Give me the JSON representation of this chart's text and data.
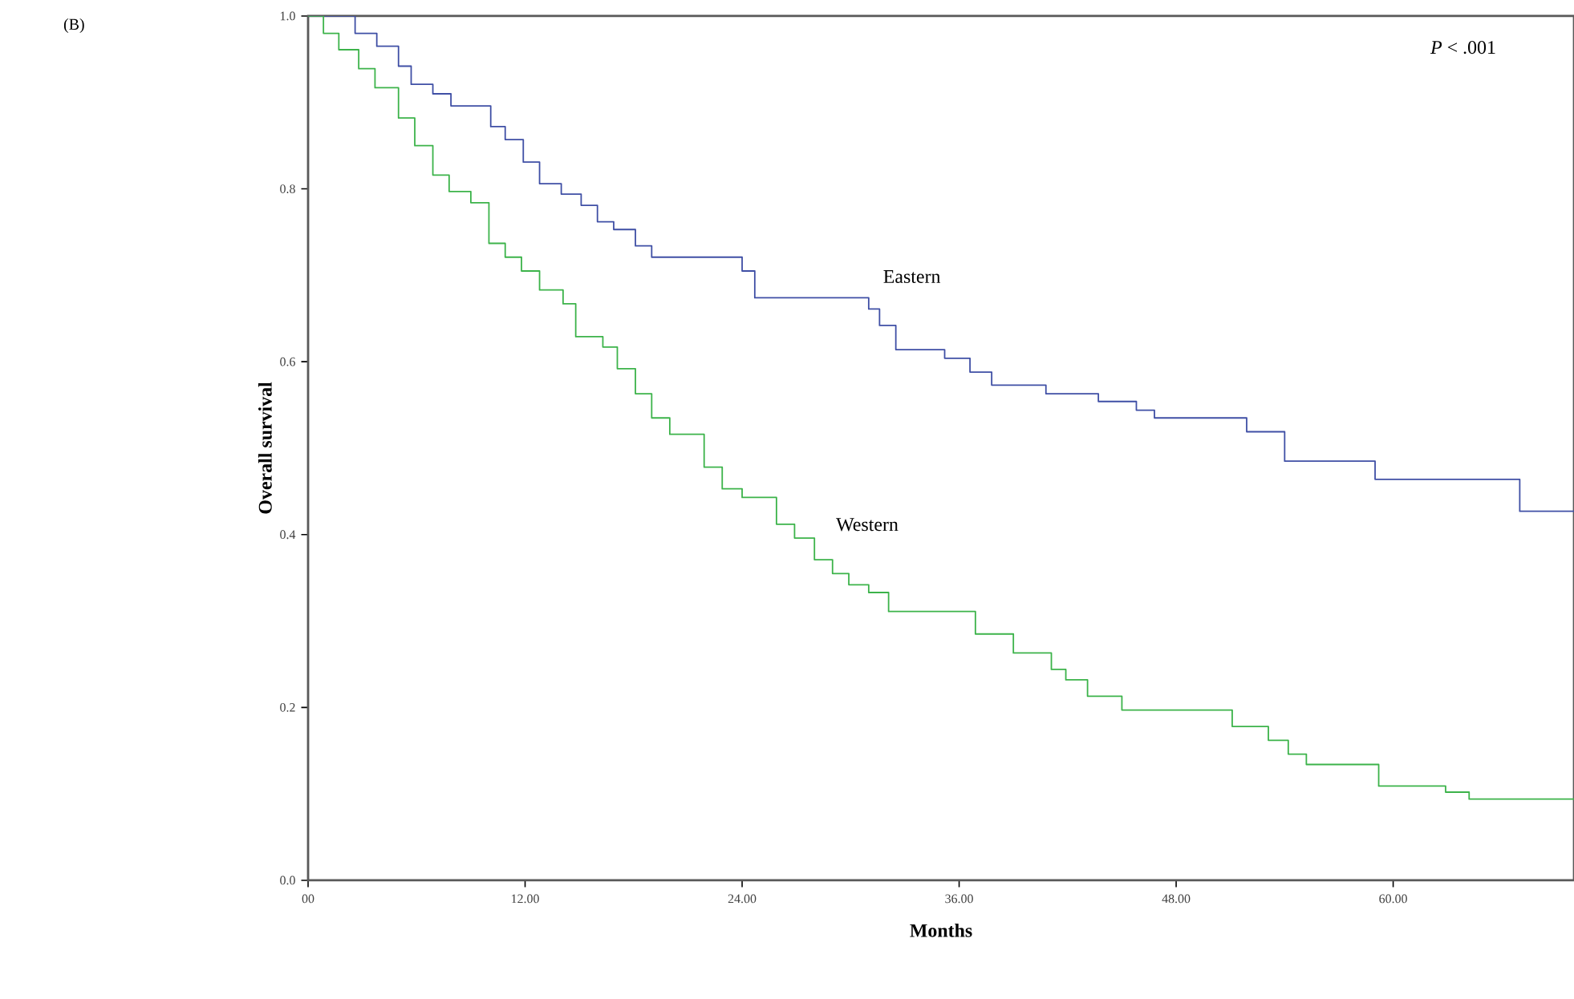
{
  "chart_data": {
    "type": "step",
    "xlabel": "Months",
    "ylabel": "Overall survival",
    "annotations": [
      "(B)",
      "*P* < .001"
    ],
    "xlim": [
      0,
      70
    ],
    "ylim": [
      0,
      1
    ],
    "xticks": [
      {
        "value": 0,
        "label": "00"
      },
      {
        "value": 12,
        "label": "12.00"
      },
      {
        "value": 24,
        "label": "24.00"
      },
      {
        "value": 36,
        "label": "36.00"
      },
      {
        "value": 48,
        "label": "48.00"
      },
      {
        "value": 60,
        "label": "60.00"
      }
    ],
    "yticks": [
      {
        "value": 0,
        "label": "0.0"
      },
      {
        "value": 0.2,
        "label": "0.2"
      },
      {
        "value": 0.4,
        "label": "0.4"
      },
      {
        "value": 0.6,
        "label": "0.6"
      },
      {
        "value": 0.8,
        "label": "0.8"
      },
      {
        "value": 1,
        "label": "1.0"
      }
    ],
    "grid": false,
    "legend": false,
    "series": [
      {
        "name": "Eastern",
        "color": "#3f4fa5",
        "x": [
          0,
          2.6,
          3.8,
          5.0,
          5.7,
          6.9,
          7.9,
          10.1,
          10.9,
          11.9,
          12.8,
          14.0,
          15.1,
          16.0,
          16.9,
          18.1,
          19.0,
          24.0,
          24.7,
          31.0,
          31.6,
          32.5,
          35.2,
          36.6,
          37.8,
          40.8,
          43.7,
          45.8,
          46.8,
          51.9,
          54.0,
          59.0,
          67.0,
          70
        ],
        "values": [
          1.0,
          0.98,
          0.965,
          0.942,
          0.921,
          0.91,
          0.896,
          0.872,
          0.857,
          0.831,
          0.806,
          0.794,
          0.781,
          0.762,
          0.753,
          0.734,
          0.721,
          0.705,
          0.674,
          0.661,
          0.642,
          0.614,
          0.604,
          0.588,
          0.573,
          0.563,
          0.554,
          0.544,
          0.535,
          0.519,
          0.485,
          0.464,
          0.427,
          0.427
        ]
      },
      {
        "name": "Western",
        "color": "#3cb34a",
        "x": [
          0,
          0.85,
          1.7,
          2.8,
          3.7,
          5.0,
          5.9,
          6.9,
          7.8,
          9.0,
          10.0,
          10.9,
          11.8,
          12.8,
          14.1,
          14.8,
          16.3,
          17.1,
          18.1,
          19.0,
          20.0,
          21.9,
          22.9,
          24.0,
          25.9,
          26.9,
          28.0,
          29.0,
          29.9,
          31.0,
          32.1,
          36.9,
          39.0,
          41.1,
          41.9,
          43.1,
          45.0,
          51.1,
          53.1,
          54.2,
          55.2,
          59.2,
          62.9,
          64.2,
          70
        ],
        "values": [
          1.0,
          0.98,
          0.961,
          0.939,
          0.917,
          0.882,
          0.85,
          0.816,
          0.797,
          0.784,
          0.737,
          0.721,
          0.705,
          0.683,
          0.667,
          0.629,
          0.617,
          0.592,
          0.563,
          0.535,
          0.516,
          0.478,
          0.453,
          0.443,
          0.412,
          0.396,
          0.371,
          0.355,
          0.342,
          0.333,
          0.311,
          0.285,
          0.263,
          0.244,
          0.232,
          0.213,
          0.197,
          0.178,
          0.162,
          0.146,
          0.134,
          0.109,
          0.102,
          0.094,
          0.094
        ]
      }
    ]
  }
}
